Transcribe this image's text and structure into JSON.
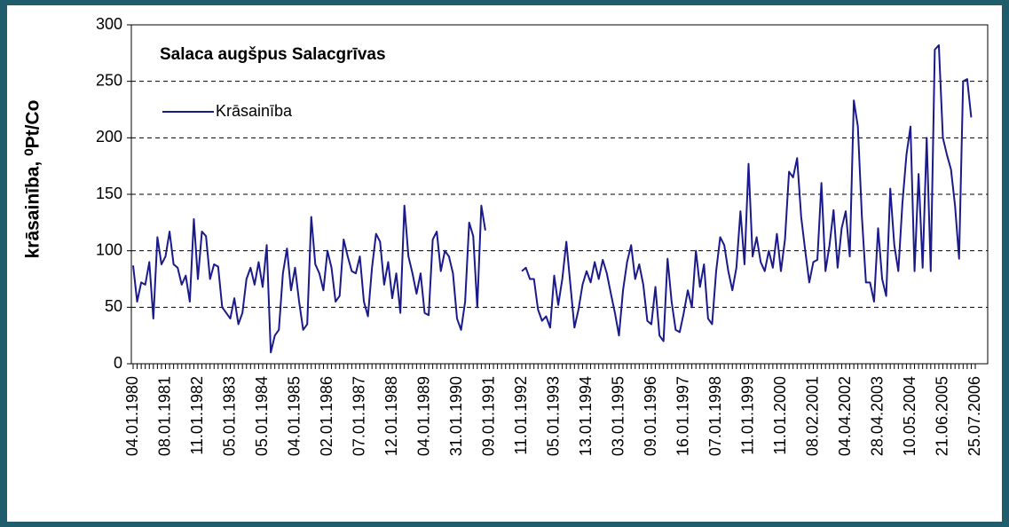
{
  "chart_data": {
    "type": "line",
    "title": "Salaca augšpus Salacgrīvas",
    "y_label": "krāsainība, ⁰Pt/Co",
    "categories": [
      "04.01.1980",
      null,
      null,
      null,
      null,
      null,
      null,
      null,
      "08.01.1981",
      null,
      null,
      null,
      null,
      null,
      null,
      null,
      "11.01.1982",
      null,
      null,
      null,
      null,
      null,
      null,
      null,
      "05.01.1983",
      null,
      null,
      null,
      null,
      null,
      null,
      null,
      "05.01.1984",
      null,
      null,
      null,
      null,
      null,
      null,
      null,
      "04.01.1985",
      null,
      null,
      null,
      null,
      null,
      null,
      null,
      "02.01.1986",
      null,
      null,
      null,
      null,
      null,
      null,
      null,
      "07.01.1987",
      null,
      null,
      null,
      null,
      null,
      null,
      null,
      "12.01.1988",
      null,
      null,
      null,
      null,
      null,
      null,
      null,
      "04.01.1989",
      null,
      null,
      null,
      null,
      null,
      null,
      null,
      "31.01.1990",
      null,
      null,
      null,
      null,
      null,
      null,
      null,
      "09.01.1991",
      null,
      null,
      null,
      null,
      null,
      null,
      null,
      "11.01.1992",
      null,
      null,
      null,
      null,
      null,
      null,
      null,
      "05.01.1993",
      null,
      null,
      null,
      null,
      null,
      null,
      null,
      "13.01.1994",
      null,
      null,
      null,
      null,
      null,
      null,
      null,
      "03.01.1995",
      null,
      null,
      null,
      null,
      null,
      null,
      null,
      "09.01.1996",
      null,
      null,
      null,
      null,
      null,
      null,
      null,
      "16.01.1997",
      null,
      null,
      null,
      null,
      null,
      null,
      null,
      "07.01.1998",
      null,
      null,
      null,
      null,
      null,
      null,
      null,
      "11.01.1999",
      null,
      null,
      null,
      null,
      null,
      null,
      null,
      "11.01.2000",
      null,
      null,
      null,
      null,
      null,
      null,
      null,
      "08.02.2001",
      null,
      null,
      null,
      null,
      null,
      null,
      null,
      "04.04.2002",
      null,
      null,
      null,
      null,
      null,
      null,
      null,
      "28.04.2003",
      null,
      null,
      null,
      null,
      null,
      null,
      null,
      "10.05.2004",
      null,
      null,
      null,
      null,
      null,
      null,
      null,
      "21.06.2005",
      null,
      null,
      null,
      null,
      null,
      null,
      null,
      "25.07.2006"
    ],
    "series": [
      {
        "name": "Krāsainība",
        "color": "#1a1a8c",
        "values": [
          87,
          55,
          72,
          70,
          90,
          40,
          112,
          88,
          95,
          117,
          88,
          85,
          70,
          78,
          55,
          128,
          75,
          117,
          113,
          75,
          88,
          86,
          50,
          45,
          40,
          58,
          35,
          45,
          75,
          85,
          70,
          90,
          68,
          105,
          10,
          25,
          30,
          80,
          102,
          65,
          85,
          55,
          30,
          35,
          130,
          88,
          80,
          65,
          100,
          85,
          55,
          60,
          110,
          95,
          82,
          80,
          95,
          55,
          42,
          85,
          115,
          108,
          70,
          90,
          58,
          80,
          45,
          140,
          95,
          80,
          62,
          80,
          45,
          43,
          110,
          117,
          82,
          100,
          95,
          80,
          40,
          30,
          55,
          125,
          113,
          50,
          140,
          118,
          null,
          null,
          null,
          null,
          null,
          null,
          null,
          null,
          82,
          85,
          75,
          75,
          48,
          38,
          42,
          32,
          78,
          52,
          75,
          108,
          70,
          32,
          48,
          70,
          82,
          72,
          90,
          75,
          92,
          80,
          62,
          45,
          25,
          65,
          90,
          105,
          75,
          88,
          70,
          38,
          35,
          68,
          25,
          20,
          93,
          55,
          30,
          28,
          45,
          65,
          50,
          100,
          68,
          88,
          40,
          35,
          82,
          112,
          105,
          82,
          65,
          85,
          135,
          88,
          177,
          95,
          112,
          90,
          82,
          100,
          85,
          115,
          82,
          110,
          170,
          165,
          182,
          130,
          100,
          72,
          90,
          92,
          160,
          82,
          105,
          136,
          85,
          120,
          135,
          95,
          233,
          210,
          130,
          72,
          72,
          55,
          120,
          75,
          60,
          155,
          105,
          82,
          142,
          185,
          210,
          82,
          168,
          85,
          200,
          82,
          278,
          282,
          200,
          185,
          172,
          140,
          93,
          250,
          252,
          218,
          null
        ]
      }
    ],
    "ylim": [
      0,
      300
    ],
    "yticks": [
      0,
      50,
      100,
      150,
      200,
      250,
      300
    ],
    "grid": true
  }
}
